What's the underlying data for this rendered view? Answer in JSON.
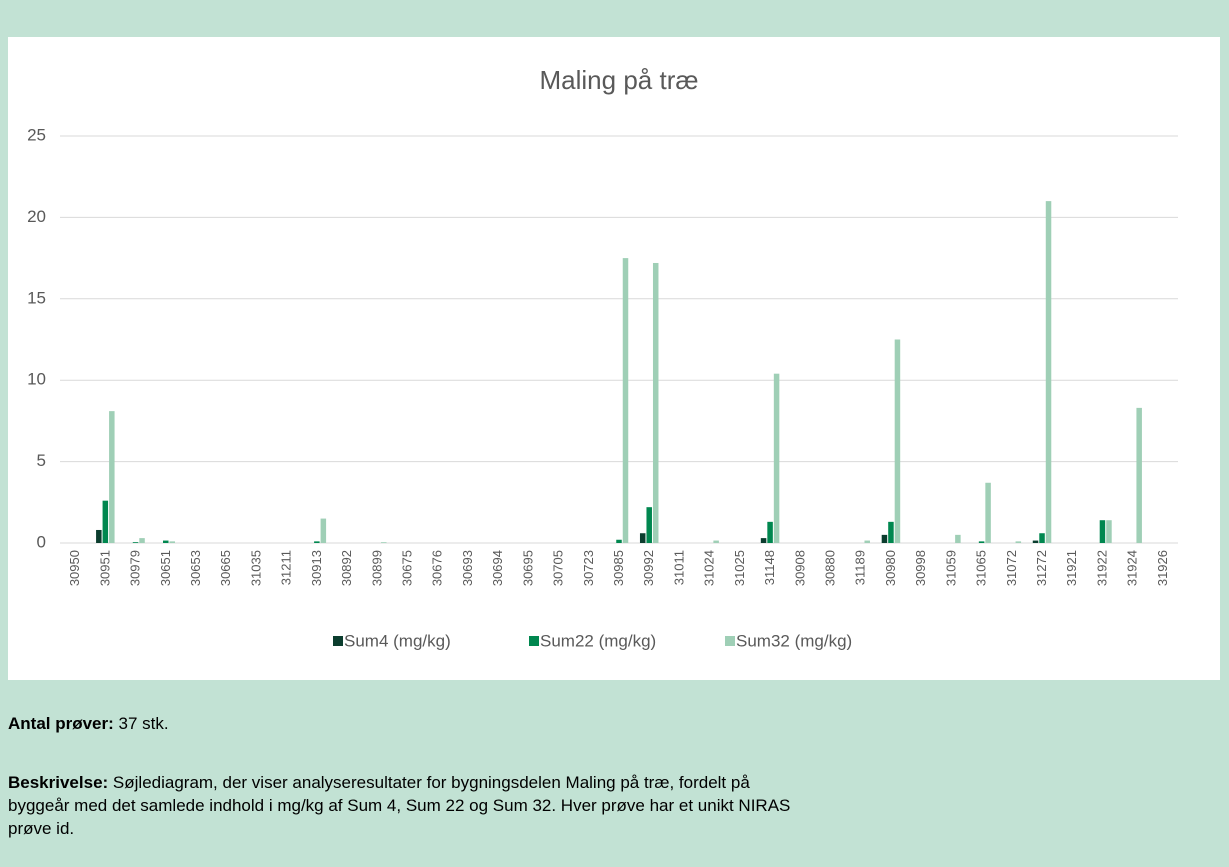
{
  "chart_data": {
    "type": "bar",
    "title": "Maling på træ",
    "categories": [
      "30950",
      "30951",
      "30979",
      "30651",
      "30653",
      "30665",
      "31035",
      "31211",
      "30913",
      "30892",
      "30899",
      "30675",
      "30676",
      "30693",
      "30694",
      "30695",
      "30705",
      "30723",
      "30985",
      "30992",
      "31011",
      "31024",
      "31025",
      "31148",
      "30908",
      "30880",
      "31189",
      "30980",
      "30998",
      "31059",
      "31065",
      "31072",
      "31272",
      "31921",
      "31922",
      "31924",
      "31926"
    ],
    "series": [
      {
        "name": "Sum4 (mg/kg)",
        "color": "#0b3d2e",
        "values": [
          0,
          0.8,
          0,
          0,
          0,
          0,
          0,
          0,
          0,
          0,
          0,
          0,
          0,
          0,
          0,
          0,
          0,
          0,
          0,
          0.6,
          0,
          0,
          0,
          0.3,
          0,
          0,
          0,
          0.5,
          0,
          0,
          0,
          0,
          0.15,
          0,
          0,
          0,
          0
        ]
      },
      {
        "name": "Sum22 (mg/kg)",
        "color": "#00874f",
        "values": [
          0,
          2.6,
          0.05,
          0.15,
          0,
          0,
          0,
          0,
          0.1,
          0,
          0,
          0,
          0,
          0,
          0,
          0,
          0,
          0,
          0.2,
          2.2,
          0,
          0,
          0,
          1.3,
          0,
          0,
          0,
          1.3,
          0,
          0,
          0.1,
          0,
          0.6,
          0,
          1.4,
          0,
          0
        ]
      },
      {
        "name": "Sum32 (mg/kg)",
        "color": "#9fcfb6",
        "values": [
          0,
          8.1,
          0.3,
          0.1,
          0,
          0,
          0,
          0,
          1.5,
          0,
          0.05,
          0,
          0,
          0,
          0,
          0,
          0,
          0,
          17.5,
          17.2,
          0,
          0.15,
          0,
          10.4,
          0,
          0,
          0.15,
          12.5,
          0,
          0.5,
          3.7,
          0.1,
          21,
          0,
          1.4,
          8.3,
          0
        ]
      }
    ],
    "ylim": [
      0,
      25
    ],
    "yticks": [
      0,
      5,
      10,
      15,
      20,
      25
    ],
    "grid": true,
    "legend": "bottom"
  },
  "notes": {
    "count_label": "Antal prøver:",
    "count_value": " 37 stk.",
    "description_label": "Beskrivelse:",
    "description_text": " Søjlediagram, der viser analyseresultater for bygningsdelen Maling på træ, fordelt på byggeår med det samlede indhold i mg/kg af Sum 4, Sum 22 og Sum 32. Hver prøve har et unikt NIRAS prøve id."
  }
}
